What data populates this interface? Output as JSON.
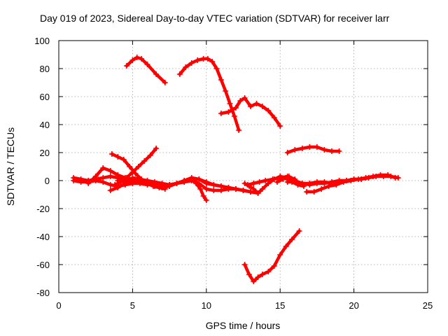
{
  "chart_data": {
    "type": "line",
    "title": "Day 019 of 2023, Sidereal Day-to-day VTEC variation (SDTVAR) for receiver larr",
    "xlabel": "GPS time / hours",
    "ylabel": "SDTVAR / TECUs",
    "xlim": [
      0,
      25
    ],
    "ylim": [
      -80,
      100
    ],
    "xticks": [
      0,
      5,
      10,
      15,
      20,
      25
    ],
    "yticks": [
      -80,
      -60,
      -40,
      -20,
      0,
      20,
      40,
      60,
      80,
      100
    ],
    "grid": true,
    "legend": "none",
    "series_color": "#ff0000",
    "series": [
      {
        "x": [
          4.6,
          5.0,
          5.3,
          5.6,
          6.0,
          6.6,
          7.2
        ],
        "y": [
          82,
          86,
          88,
          87,
          83,
          76,
          70
        ]
      },
      {
        "x": [
          8.2,
          8.6,
          9.0,
          9.4,
          9.8,
          10.1,
          10.4,
          10.7,
          11.0,
          11.3,
          11.6,
          11.9,
          12.2
        ],
        "y": [
          76,
          81,
          84,
          86,
          87,
          87,
          85,
          80,
          72,
          64,
          55,
          46,
          36
        ]
      },
      {
        "x": [
          11.0,
          11.5,
          12.0,
          12.3,
          12.6,
          13.0,
          13.4,
          13.8,
          14.2,
          14.6,
          15.0
        ],
        "y": [
          48,
          49,
          52,
          57,
          59,
          53,
          55,
          53,
          50,
          45,
          39
        ]
      },
      {
        "x": [
          15.5,
          16.0,
          16.5,
          17.0,
          17.5,
          18.0,
          18.5,
          19.0
        ],
        "y": [
          20,
          22,
          23,
          24,
          24,
          22,
          21,
          21
        ]
      },
      {
        "x": [
          12.6,
          12.9,
          13.2,
          13.5,
          13.8,
          14.2,
          14.6,
          15.0,
          15.4,
          15.8,
          16.3
        ],
        "y": [
          -60,
          -67,
          -72,
          -69,
          -67,
          -65,
          -61,
          -53,
          -47,
          -42,
          -36
        ]
      },
      {
        "x": [
          1.0,
          1.5,
          2.0,
          2.5,
          3.0,
          3.5,
          4.0,
          4.5,
          5.0,
          5.5,
          6.0,
          6.5,
          7.0,
          7.5,
          8.0,
          8.5,
          9.0,
          9.3,
          9.6,
          9.8,
          10.0
        ],
        "y": [
          0,
          -1,
          -1,
          0,
          -1,
          -3,
          -4,
          -3,
          -2,
          -1,
          -2,
          -4,
          -5,
          -4,
          -2,
          0,
          1,
          -2,
          -6,
          -11,
          -14
        ]
      },
      {
        "x": [
          3.5,
          4.0,
          4.5,
          5.0,
          5.5,
          6.0,
          6.5,
          7.0,
          7.5,
          8.0,
          8.5,
          9.0,
          9.5,
          10.0,
          10.5,
          11.0,
          11.5,
          12.0,
          12.5,
          13.0
        ],
        "y": [
          -7,
          -5,
          -2,
          2,
          1,
          0,
          -1,
          -2,
          -3,
          -2,
          -1,
          0,
          1,
          -2,
          -3,
          -4,
          -5,
          -6,
          -7,
          -8
        ]
      },
      {
        "x": [
          1.0,
          1.5,
          2.0,
          2.5,
          3.0,
          3.5,
          4.0,
          4.5,
          5.0,
          5.5,
          6.0,
          6.5,
          7.0,
          7.5
        ],
        "y": [
          2,
          1,
          0,
          1,
          2,
          3,
          2,
          1,
          0,
          -1,
          -2,
          -3,
          -4,
          -4
        ]
      },
      {
        "x": [
          2.0,
          2.5,
          3.0,
          3.5,
          4.0,
          4.5,
          5.0,
          5.5,
          6.0,
          6.5,
          7.0,
          7.5,
          8.0,
          8.5,
          9.0,
          9.5,
          10.0,
          10.5,
          11.0,
          11.5,
          12.0,
          12.5,
          13.0,
          13.5
        ],
        "y": [
          -2,
          3,
          9,
          7,
          4,
          2,
          1,
          0,
          -1,
          -2,
          -3,
          -3,
          -2,
          0,
          2,
          1,
          -1,
          -3,
          -4,
          -5,
          -6,
          -7,
          -8,
          -9
        ]
      },
      {
        "x": [
          3.6,
          4.0,
          4.4,
          4.8,
          5.2,
          5.6,
          6.0,
          6.4,
          6.8,
          7.2
        ],
        "y": [
          19,
          17,
          15,
          10,
          5,
          1,
          -2,
          -4,
          -5,
          -6
        ]
      },
      {
        "x": [
          3.8,
          4.2,
          4.6,
          5.0,
          5.4,
          5.8,
          6.2,
          6.6
        ],
        "y": [
          -3,
          -1,
          2,
          6,
          10,
          14,
          18,
          23
        ]
      },
      {
        "x": [
          4.0,
          4.5,
          5.0,
          5.5,
          6.0,
          6.5,
          7.0,
          7.5,
          8.0,
          8.5,
          9.0,
          9.5,
          10.0,
          10.5,
          11.0,
          11.5,
          12.0,
          12.5,
          13.0
        ],
        "y": [
          0,
          -1,
          -2,
          -2,
          -3,
          -3,
          -3,
          -3,
          -2,
          -1,
          0,
          -2,
          -6,
          -7,
          -7,
          -6,
          -6,
          -7,
          -8
        ]
      },
      {
        "x": [
          12.6,
          12.9,
          13.2,
          13.5,
          13.8,
          14.2,
          14.6,
          15.0,
          15.4,
          15.8,
          16.2,
          16.6
        ],
        "y": [
          -2,
          -4,
          -6,
          -9,
          -6,
          -2,
          1,
          3,
          2,
          -1,
          -3,
          -4
        ]
      },
      {
        "x": [
          12.8,
          13.2,
          13.6,
          14.0,
          14.5,
          15.0,
          15.5,
          16.0
        ],
        "y": [
          -3,
          -2,
          -1,
          0,
          1,
          2,
          3,
          1
        ]
      },
      {
        "x": [
          14.8,
          15.2,
          15.6,
          16.0,
          16.5,
          17.0,
          17.5,
          18.0,
          18.5,
          19.0,
          19.5,
          20.0,
          20.5,
          21.0,
          21.5,
          22.0,
          22.5,
          23.0
        ],
        "y": [
          -1,
          1,
          3,
          0,
          -2,
          -3,
          -2,
          -2,
          -1,
          0,
          0,
          1,
          1,
          2,
          3,
          3,
          3,
          2
        ]
      },
      {
        "x": [
          15.5,
          16.0,
          16.5,
          17.0,
          17.5,
          18.0,
          18.5,
          19.0,
          19.5,
          20.0,
          20.5
        ],
        "y": [
          -1,
          -1,
          -2,
          -2,
          -1,
          -1,
          -2,
          -1,
          0,
          1,
          1
        ]
      },
      {
        "x": [
          16.8,
          17.3,
          17.8,
          18.3,
          18.8,
          19.3,
          19.8,
          20.3,
          20.8,
          21.3,
          21.8,
          22.3,
          22.8
        ],
        "y": [
          -8,
          -8,
          -6,
          -4,
          -3,
          -1,
          0,
          1,
          2,
          3,
          4,
          4,
          2
        ]
      }
    ]
  }
}
